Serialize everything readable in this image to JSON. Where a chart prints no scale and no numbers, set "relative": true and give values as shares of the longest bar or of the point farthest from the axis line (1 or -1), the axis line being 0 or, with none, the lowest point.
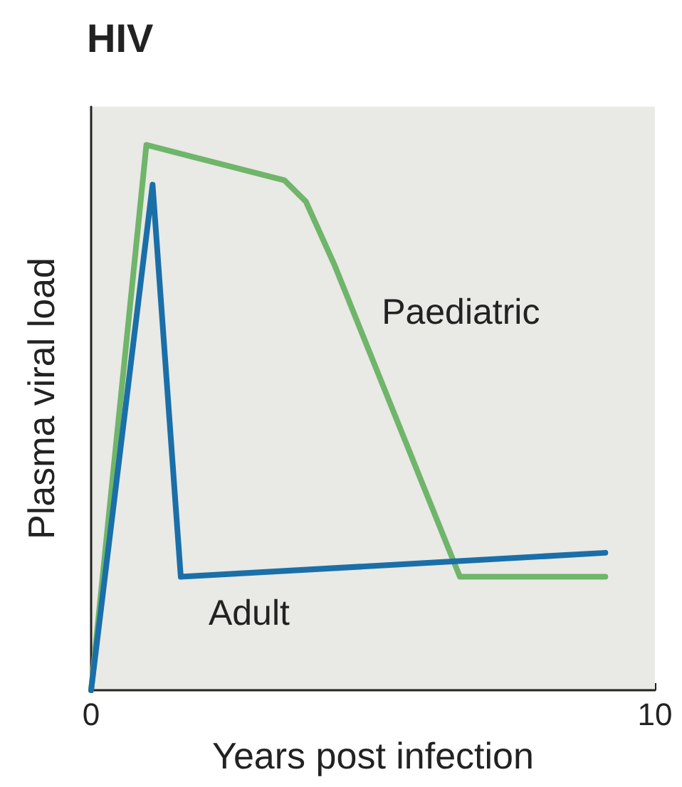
{
  "chart_data": {
    "type": "line",
    "title": "HIV",
    "xlabel": "Years post infection",
    "ylabel": "Plasma viral load",
    "relative": true,
    "xlim": [
      0,
      10
    ],
    "xticks": [
      0,
      10
    ],
    "grid": false,
    "legend": false,
    "marker": "none",
    "line_style": "solid",
    "series": [
      {
        "name": "Paediatric",
        "color": "#6fb56a",
        "x": [
          0,
          0.98,
          3.43,
          3.81,
          4.32,
          6.54,
          9.12
        ],
        "values": [
          0,
          1.0,
          0.935,
          0.896,
          0.779,
          0.208,
          0.208
        ]
      },
      {
        "name": "Adult",
        "color": "#1a6fa8",
        "x": [
          0,
          1.09,
          1.59,
          9.12
        ],
        "values": [
          0,
          0.927,
          0.208,
          0.252
        ]
      }
    ]
  }
}
